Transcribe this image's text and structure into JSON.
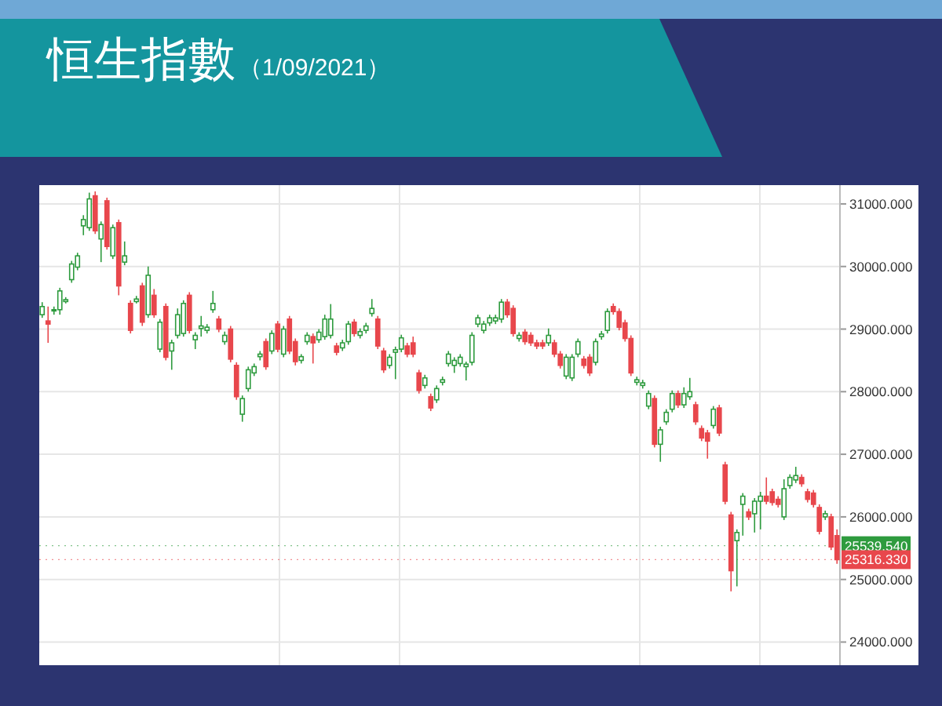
{
  "chart_data": {
    "type": "candlestick",
    "title": "恒生指數",
    "subtitle": "（1/09/2021）",
    "colors": [
      "#2e9b3e",
      "#e8474c",
      "#2e9b3e",
      "#2e9b3e",
      "#2e9b3e",
      "#2e9b3e",
      "#2e9b3e",
      "#2e9b3e",
      "#2e9b3e",
      "#e8474c",
      "#2e9b3e",
      "#e8474c",
      "#2e9b3e",
      "#e8474c",
      "#2e9b3e",
      "#e8474c",
      "#2e9b3e",
      "#e8474c",
      "#2e9b3e",
      "#e8474c",
      "#2e9b3e",
      "#e8474c",
      "#2e9b3e",
      "#2e9b3e",
      "#2e9b3e",
      "#e8474c",
      "#2e9b3e",
      "#2e9b3e",
      "#2e9b3e",
      "#2e9b3e",
      "#e8474c",
      "#2e9b3e",
      "#e8474c",
      "#e8474c",
      "#2e9b3e",
      "#2e9b3e",
      "#2e9b3e",
      "#2e9b3e",
      "#e8474c",
      "#2e9b3e",
      "#e8474c",
      "#2e9b3e",
      "#e8474c",
      "#e8474c",
      "#2e9b3e",
      "#2e9b3e",
      "#e8474c",
      "#2e9b3e",
      "#2e9b3e",
      "#2e9b3e",
      "#e8474c",
      "#2e9b3e",
      "#2e9b3e",
      "#e8474c",
      "#2e9b3e",
      "#2e9b3e",
      "#2e9b3e",
      "#e8474c",
      "#e8474c",
      "#2e9b3e",
      "#2e9b3e",
      "#2e9b3e",
      "#e8474c",
      "#e8474c",
      "#e8474c",
      "#2e9b3e",
      "#e8474c",
      "#2e9b3e",
      "#2e9b3e",
      "#2e9b3e",
      "#2e9b3e",
      "#2e9b3e",
      "#2e9b3e",
      "#2e9b3e",
      "#2e9b3e",
      "#2e9b3e",
      "#2e9b3e",
      "#2e9b3e",
      "#2e9b3e",
      "#e8474c",
      "#e8474c",
      "#2e9b3e",
      "#e8474c",
      "#e8474c",
      "#e8474c",
      "#e8474c",
      "#2e9b3e",
      "#e8474c",
      "#e8474c",
      "#2e9b3e",
      "#2e9b3e",
      "#2e9b3e",
      "#e8474c",
      "#e8474c",
      "#2e9b3e",
      "#2e9b3e",
      "#2e9b3e",
      "#e8474c",
      "#e8474c",
      "#e8474c",
      "#e8474c",
      "#2e9b3e",
      "#2e9b3e",
      "#2e9b3e",
      "#e8474c",
      "#2e9b3e",
      "#2e9b3e",
      "#2e9b3e",
      "#e8474c",
      "#2e9b3e",
      "#2e9b3e",
      "#e8474c",
      "#e8474c",
      "#e8474c",
      "#2e9b3e",
      "#e8474c",
      "#e8474c",
      "#e8474c",
      "#2e9b3e",
      "#2e9b3e",
      "#e8474c",
      "#2e9b3e",
      "#2e9b3e",
      "#e8474c",
      "#e8474c",
      "#e8474c",
      "#2e9b3e",
      "#2e9b3e",
      "#2e9b3e",
      "#e8474c",
      "#e8474c",
      "#e8474c",
      "#e8474c",
      "#2e9b3e",
      "#e8474c",
      "#e8474c"
    ],
    "categories": [
      null,
      null,
      null,
      null,
      null,
      null,
      null,
      null,
      null,
      null,
      null,
      null,
      null,
      null,
      null,
      null,
      null,
      null,
      null,
      null,
      null,
      null,
      null,
      null,
      null,
      null,
      null,
      null,
      null,
      null,
      null,
      null,
      null,
      null,
      null,
      null,
      null,
      null,
      null,
      null,
      null,
      null,
      null,
      null,
      null,
      null,
      null,
      null,
      null,
      null,
      null,
      null,
      null,
      null,
      null,
      null,
      null,
      null,
      null,
      null,
      null,
      null,
      null,
      null,
      null,
      null,
      null,
      null,
      null,
      null,
      null,
      null,
      null,
      null,
      null,
      null,
      null,
      null,
      null,
      null,
      null,
      null,
      null,
      null,
      null,
      null,
      null,
      null,
      null,
      null,
      null,
      null,
      null,
      null,
      null,
      null,
      null,
      null,
      null,
      null,
      null,
      null,
      null,
      null,
      null,
      null,
      null,
      null,
      null,
      null,
      null,
      null,
      null,
      null,
      null,
      null,
      null,
      null,
      null,
      null,
      null,
      null,
      null,
      null,
      null,
      null,
      null,
      null,
      null,
      null,
      null,
      null,
      null,
      null,
      null,
      null
    ],
    "ohlc": [
      [
        29230,
        29430,
        29180,
        29360
      ],
      [
        29130,
        29360,
        28780,
        29080
      ],
      [
        29290,
        29360,
        29230,
        29310
      ],
      [
        29310,
        29660,
        29230,
        29610
      ],
      [
        29440,
        29510,
        29410,
        29470
      ],
      [
        29790,
        30090,
        29740,
        30040
      ],
      [
        29990,
        30220,
        29940,
        30170
      ],
      [
        30650,
        30820,
        30500,
        30750
      ],
      [
        30620,
        31180,
        30570,
        31080
      ],
      [
        31130,
        31200,
        30520,
        30570
      ],
      [
        30440,
        30720,
        30070,
        30670
      ],
      [
        31050,
        31100,
        30270,
        30320
      ],
      [
        30170,
        30670,
        30120,
        30620
      ],
      [
        30700,
        30750,
        29540,
        29690
      ],
      [
        30070,
        30400,
        30020,
        30170
      ],
      [
        29410,
        29460,
        28930,
        28980
      ],
      [
        29440,
        29530,
        29410,
        29480
      ],
      [
        29690,
        29740,
        29050,
        29110
      ],
      [
        29230,
        30000,
        29180,
        29860
      ],
      [
        29540,
        29640,
        29180,
        29230
      ],
      [
        28680,
        29160,
        28630,
        29110
      ],
      [
        29360,
        29410,
        28500,
        28550
      ],
      [
        28650,
        28830,
        28350,
        28780
      ],
      [
        28900,
        29330,
        28850,
        29230
      ],
      [
        28930,
        29460,
        28880,
        29410
      ],
      [
        29540,
        29590,
        28930,
        28980
      ],
      [
        28830,
        28950,
        28680,
        28900
      ],
      [
        29010,
        29210,
        28880,
        29050
      ],
      [
        28980,
        29080,
        28930,
        29030
      ],
      [
        29310,
        29610,
        29260,
        29410
      ],
      [
        29160,
        29210,
        28950,
        29000
      ],
      [
        28800,
        28960,
        28750,
        28900
      ],
      [
        29000,
        29050,
        28470,
        28520
      ],
      [
        28420,
        28470,
        27870,
        27920
      ],
      [
        27640,
        27940,
        27520,
        27890
      ],
      [
        28050,
        28400,
        28000,
        28350
      ],
      [
        28300,
        28450,
        28250,
        28400
      ],
      [
        28560,
        28650,
        28500,
        28600
      ],
      [
        28800,
        28850,
        28350,
        28400
      ],
      [
        28650,
        28980,
        28600,
        28930
      ],
      [
        29080,
        29130,
        28630,
        28680
      ],
      [
        28600,
        29050,
        28550,
        29000
      ],
      [
        29160,
        29210,
        28600,
        28650
      ],
      [
        28800,
        28850,
        28420,
        28480
      ],
      [
        28500,
        28600,
        28450,
        28560
      ],
      [
        28800,
        28950,
        28750,
        28900
      ],
      [
        28880,
        28930,
        28450,
        28780
      ],
      [
        28830,
        29000,
        28780,
        28950
      ],
      [
        28880,
        29230,
        28830,
        29160
      ],
      [
        28900,
        29400,
        28850,
        29160
      ],
      [
        28730,
        28780,
        28580,
        28630
      ],
      [
        28700,
        28830,
        28650,
        28780
      ],
      [
        28800,
        29130,
        28750,
        29080
      ],
      [
        29110,
        29160,
        28880,
        28930
      ],
      [
        28900,
        29010,
        28850,
        28960
      ],
      [
        28980,
        29100,
        28930,
        29050
      ],
      [
        29250,
        29480,
        29200,
        29330
      ],
      [
        29160,
        29210,
        28680,
        28730
      ],
      [
        28650,
        28700,
        28300,
        28350
      ],
      [
        28420,
        28600,
        28370,
        28550
      ],
      [
        28630,
        28720,
        28200,
        28670
      ],
      [
        28680,
        28910,
        28630,
        28860
      ],
      [
        28730,
        28780,
        28550,
        28600
      ],
      [
        28780,
        28880,
        28550,
        28600
      ],
      [
        28300,
        28350,
        27970,
        28020
      ],
      [
        28100,
        28270,
        28050,
        28220
      ],
      [
        27920,
        27970,
        27690,
        27740
      ],
      [
        27870,
        28100,
        27820,
        28050
      ],
      [
        28150,
        28240,
        28100,
        28190
      ],
      [
        28450,
        28650,
        28400,
        28600
      ],
      [
        28420,
        28550,
        28300,
        28500
      ],
      [
        28450,
        28600,
        28400,
        28550
      ],
      [
        28400,
        28480,
        28180,
        28440
      ],
      [
        28470,
        28950,
        28420,
        28900
      ],
      [
        29080,
        29230,
        29030,
        29180
      ],
      [
        28980,
        29130,
        28930,
        29080
      ],
      [
        29100,
        29230,
        29050,
        29180
      ],
      [
        29130,
        29230,
        29080,
        29180
      ],
      [
        29160,
        29480,
        29100,
        29430
      ],
      [
        29430,
        29480,
        29180,
        29230
      ],
      [
        29330,
        29380,
        28880,
        28930
      ],
      [
        28850,
        28950,
        28800,
        28900
      ],
      [
        28950,
        29000,
        28750,
        28800
      ],
      [
        28900,
        28950,
        28730,
        28780
      ],
      [
        28780,
        28830,
        28680,
        28730
      ],
      [
        28780,
        28830,
        28680,
        28730
      ],
      [
        28780,
        29010,
        28730,
        28900
      ],
      [
        28780,
        28830,
        28550,
        28600
      ],
      [
        28600,
        28650,
        28370,
        28420
      ],
      [
        28250,
        28600,
        28200,
        28550
      ],
      [
        28220,
        28600,
        28170,
        28550
      ],
      [
        28600,
        28850,
        28550,
        28800
      ],
      [
        28520,
        28570,
        28370,
        28420
      ],
      [
        28550,
        28600,
        28250,
        28300
      ],
      [
        28470,
        28850,
        28420,
        28800
      ],
      [
        28880,
        28970,
        28830,
        28920
      ],
      [
        28980,
        29330,
        28930,
        29280
      ],
      [
        29360,
        29410,
        29230,
        29280
      ],
      [
        29280,
        29330,
        28980,
        29030
      ],
      [
        29100,
        29150,
        28800,
        28850
      ],
      [
        28850,
        28900,
        28250,
        28300
      ],
      [
        28150,
        28240,
        28100,
        28190
      ],
      [
        28100,
        28190,
        28050,
        28140
      ],
      [
        27770,
        28020,
        27720,
        27970
      ],
      [
        27890,
        27940,
        27110,
        27160
      ],
      [
        27160,
        27440,
        26880,
        27390
      ],
      [
        27520,
        27720,
        27470,
        27670
      ],
      [
        27720,
        28020,
        27670,
        27970
      ],
      [
        27970,
        28020,
        27740,
        27790
      ],
      [
        27790,
        28070,
        27740,
        27970
      ],
      [
        27920,
        28220,
        27870,
        28000
      ],
      [
        27790,
        27840,
        27470,
        27520
      ],
      [
        27410,
        27460,
        27210,
        27260
      ],
      [
        27340,
        27390,
        26930,
        27210
      ],
      [
        27460,
        27770,
        27410,
        27720
      ],
      [
        27740,
        27790,
        27290,
        27340
      ],
      [
        26830,
        26880,
        26200,
        26250
      ],
      [
        26030,
        26080,
        24810,
        25140
      ],
      [
        25620,
        25800,
        24890,
        25750
      ],
      [
        26200,
        26380,
        25700,
        26330
      ],
      [
        26080,
        26130,
        25950,
        26000
      ],
      [
        26050,
        26300,
        25750,
        26250
      ],
      [
        26250,
        26400,
        25800,
        26330
      ],
      [
        26330,
        26630,
        26200,
        26250
      ],
      [
        26400,
        26450,
        26180,
        26230
      ],
      [
        26280,
        26330,
        26150,
        26200
      ],
      [
        26000,
        26600,
        25950,
        26450
      ],
      [
        26500,
        26680,
        26450,
        26630
      ],
      [
        26590,
        26800,
        26540,
        26660
      ],
      [
        26630,
        26680,
        26480,
        26530
      ],
      [
        26400,
        26450,
        26230,
        26280
      ],
      [
        26380,
        26430,
        26150,
        26200
      ],
      [
        26150,
        26200,
        25720,
        25770
      ],
      [
        26000,
        26100,
        25950,
        26050
      ],
      [
        26000,
        26050,
        25470,
        25520
      ],
      [
        25700,
        25800,
        25250,
        25316.33
      ]
    ],
    "ylim": [
      23630,
      31300
    ],
    "yticks": [
      {
        "value": 24000,
        "label": "24000.000"
      },
      {
        "value": 25000,
        "label": "25000.000"
      },
      {
        "value": 26000,
        "label": "26000.000"
      },
      {
        "value": 27000,
        "label": "27000.000"
      },
      {
        "value": 28000,
        "label": "28000.000"
      },
      {
        "value": 29000,
        "label": "29000.000"
      },
      {
        "value": 30000,
        "label": "30000.000"
      },
      {
        "value": 31000,
        "label": "31000.000"
      }
    ],
    "grid": true,
    "ref_lines": [
      {
        "axis": "y",
        "value": 25539.54,
        "label": "25539.540",
        "color": "#2e9b3e"
      },
      {
        "axis": "y",
        "value": 25316.33,
        "label": "25316.330",
        "color": "#e8474c"
      }
    ]
  }
}
